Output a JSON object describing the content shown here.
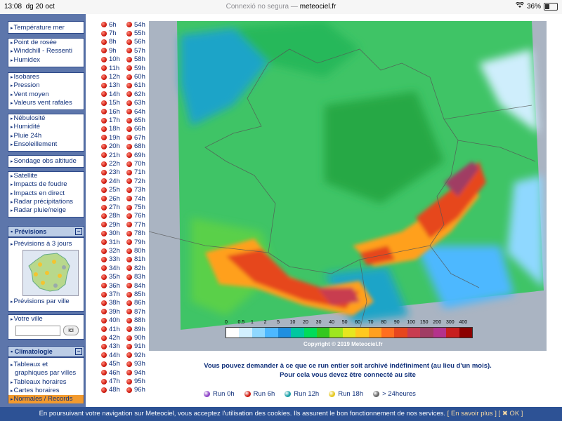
{
  "statusbar": {
    "time": "13:08",
    "date": "dg 20 oct",
    "security": "Connexió no segura —",
    "domain": "meteociel.fr",
    "battery": "36%"
  },
  "sidebar": {
    "group1": [
      "Température mer"
    ],
    "group2": [
      "Point de rosée",
      "Windchill - Ressenti",
      "Humidex"
    ],
    "group3": [
      "Isobares",
      "Pression",
      "Vent moyen",
      "Valeurs vent rafales"
    ],
    "group4": [
      "Nébulosité",
      "Humidité",
      "Pluie 24h",
      "Ensoleillement"
    ],
    "group5": [
      "Sondage obs altitude"
    ],
    "group6": [
      "Satellite",
      "Impacts de foudre",
      "Impacts en direct",
      "Radar précipitations",
      "Radar pluie/neige"
    ],
    "previsions_header": "Prévisions",
    "previsions_3j": "Prévisions à 3 jours",
    "previsions_ville": "Prévisions par ville",
    "votre_ville": "Votre ville",
    "ici_button": "ici",
    "climatologie_header": "Climatologie",
    "clim_items": [
      "Tableaux et",
      "graphiques par villes",
      "Tableaux horaires",
      "Cartes horaires",
      "Normales / Records"
    ]
  },
  "hours_col1": [
    "6h",
    "7h",
    "8h",
    "9h",
    "10h",
    "11h",
    "12h",
    "13h",
    "14h",
    "15h",
    "16h",
    "17h",
    "18h",
    "19h",
    "20h",
    "21h",
    "22h",
    "23h",
    "24h",
    "25h",
    "26h",
    "27h",
    "28h",
    "29h",
    "30h",
    "31h",
    "32h",
    "33h",
    "34h",
    "35h",
    "36h",
    "37h",
    "38h",
    "39h",
    "40h",
    "41h",
    "42h",
    "43h",
    "44h",
    "45h",
    "46h",
    "47h",
    "48h"
  ],
  "hours_col2": [
    "54h",
    "55h",
    "56h",
    "57h",
    "58h",
    "59h",
    "60h",
    "61h",
    "62h",
    "63h",
    "64h",
    "65h",
    "66h",
    "67h",
    "68h",
    "69h",
    "70h",
    "71h",
    "72h",
    "73h",
    "74h",
    "75h",
    "76h",
    "77h",
    "78h",
    "79h",
    "80h",
    "81h",
    "82h",
    "83h",
    "84h",
    "85h",
    "86h",
    "87h",
    "88h",
    "89h",
    "90h",
    "91h",
    "92h",
    "93h",
    "94h",
    "95h",
    "96h"
  ],
  "legend": {
    "labels": [
      "0",
      "0.5",
      "1",
      "2",
      "5",
      "10",
      "20",
      "30",
      "40",
      "50",
      "60",
      "70",
      "80",
      "90",
      "100",
      "150",
      "200",
      "300",
      "400"
    ],
    "colors": [
      "#ffffff",
      "#d2f0ff",
      "#8fd8ff",
      "#4db8ff",
      "#1f8fe0",
      "#00c8a0",
      "#00dc5a",
      "#34c81e",
      "#9ee61e",
      "#e6e61e",
      "#ffc81e",
      "#ffa01e",
      "#ff6e1e",
      "#e6461e",
      "#c83c50",
      "#a03c64",
      "#b4328c",
      "#c81e1e",
      "#8c0000"
    ]
  },
  "copyright": "Copyright © 2019 Meteociel.fr",
  "message": {
    "line1": "Vous pouvez demander à ce que ce run entier soit archivé indéfiniment (au lieu d'un mois).",
    "line2": "Pour cela vous devez être connecté au site"
  },
  "runs": [
    {
      "label": "Run 0h",
      "color": "#8e44c8"
    },
    {
      "label": "Run 6h",
      "color": "#d01b10"
    },
    {
      "label": "Run 12h",
      "color": "#1aa0a8"
    },
    {
      "label": "Run 18h",
      "color": "#e6c81e"
    },
    {
      "label": "> 24heures",
      "color": "#666666"
    }
  ],
  "cookie": {
    "text": "En poursuivant votre navigation sur Meteociel, vous acceptez l'utilisation des cookies. Ils assurent le bon fonctionnement de nos services.",
    "more": "[ En savoir plus ]",
    "ok": "[ ✖ OK ]"
  }
}
